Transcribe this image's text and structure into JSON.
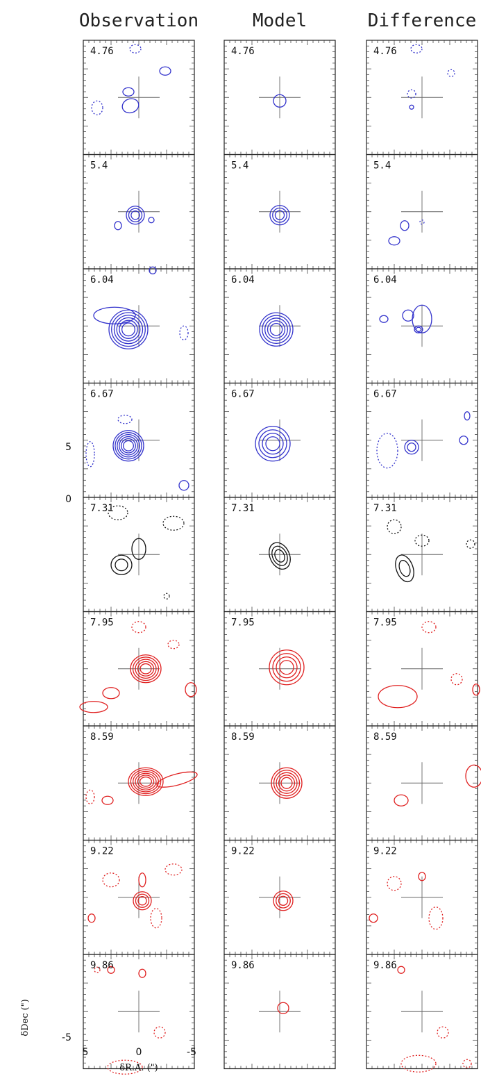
{
  "figure": {
    "columns": [
      "Observation",
      "Model",
      "Difference"
    ],
    "channels": [
      "4.76",
      "5.4",
      "6.04",
      "6.67",
      "7.31",
      "7.95",
      "8.59",
      "9.22",
      "9.86"
    ],
    "channel_colors": [
      "#3333cc",
      "#3333cc",
      "#3333cc",
      "#3333cc",
      "#111111",
      "#e02020",
      "#e02020",
      "#e02020",
      "#e02020"
    ],
    "x_axis": {
      "label": "δR.A. (\")",
      "ticks": [
        "5",
        "0",
        "-5"
      ]
    },
    "y_axis": {
      "label": "δDec (\")",
      "ticks": [
        "5",
        "0",
        "-5"
      ]
    },
    "contour_style": {
      "positive": "solid",
      "negative": "dotted"
    }
  }
}
